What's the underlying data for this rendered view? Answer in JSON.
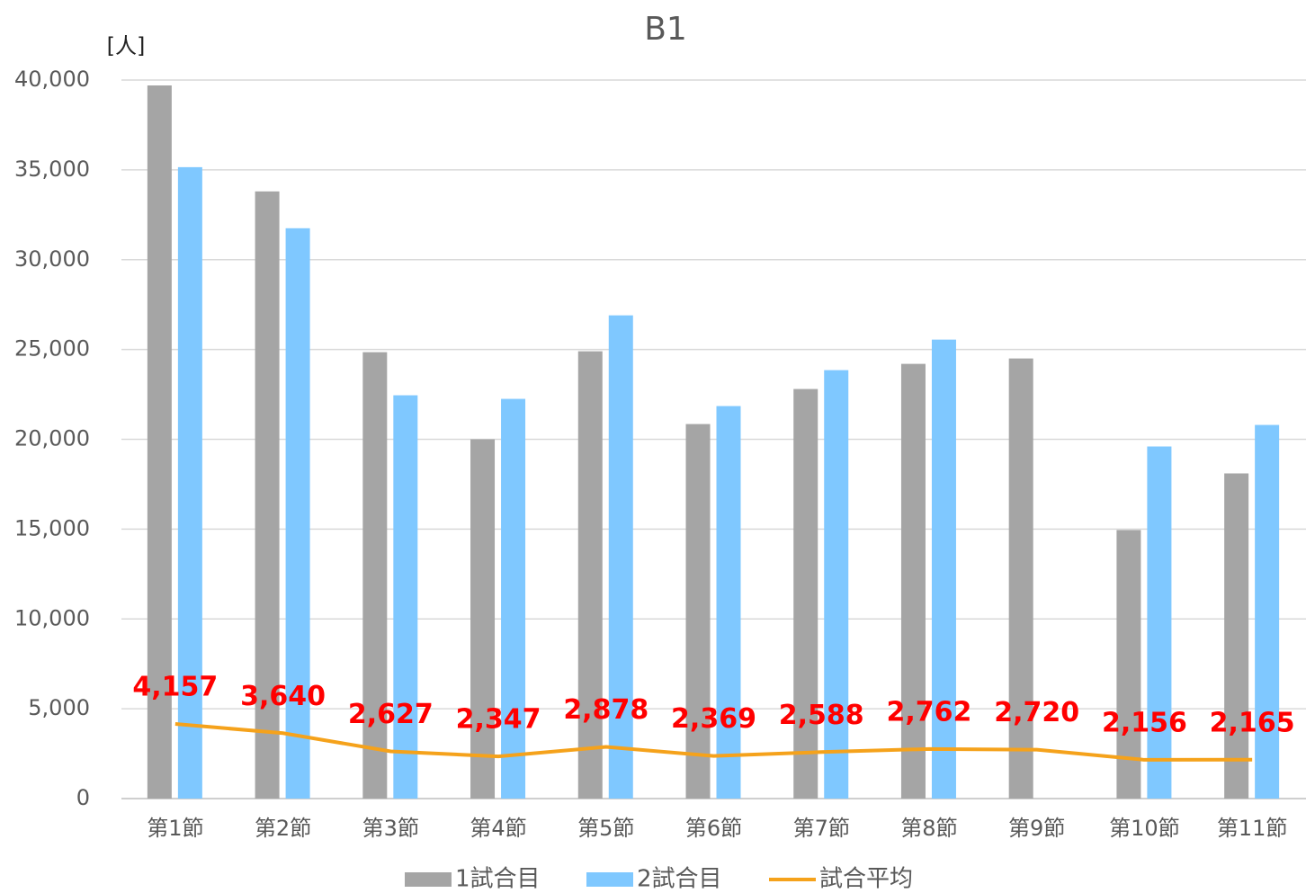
{
  "chart_data": {
    "type": "bar",
    "title": "B1",
    "y_unit_label": "[人]",
    "categories": [
      "第1節",
      "第2節",
      "第3節",
      "第4節",
      "第5節",
      "第6節",
      "第7節",
      "第8節",
      "第9節",
      "第10節",
      "第11節"
    ],
    "series": [
      {
        "name": "1試合目",
        "color": "#a5a5a5",
        "values": [
          39700,
          33800,
          24850,
          20000,
          24900,
          20850,
          22800,
          24200,
          24500,
          14950,
          18100
        ]
      },
      {
        "name": "2試合目",
        "color": "#7fc8ff",
        "values": [
          35150,
          31750,
          22450,
          22250,
          26900,
          21850,
          23850,
          25550,
          null,
          19600,
          20800
        ]
      },
      {
        "name": "試合平均",
        "type": "line",
        "color": "#f5a21b",
        "label_color": "#ff0000",
        "values": [
          4157,
          3640,
          2627,
          2347,
          2878,
          2369,
          2588,
          2762,
          2720,
          2156,
          2165
        ],
        "value_labels": [
          "4,157",
          "3,640",
          "2,627",
          "2,347",
          "2,878",
          "2,369",
          "2,588",
          "2,762",
          "2,720",
          "2,156",
          "2,165"
        ]
      }
    ],
    "ylim": [
      0,
      40000
    ],
    "yticks": [
      0,
      {
        "value": 5000,
        "label": "5,000"
      },
      {
        "value": 10000,
        "label": "10,000"
      },
      {
        "value": 15000,
        "label": "15,000"
      },
      {
        "value": 20000,
        "label": "20,000"
      },
      {
        "value": 25000,
        "label": "25,000"
      },
      {
        "value": 30000,
        "label": "30,000"
      },
      {
        "value": 35000,
        "label": "35,000"
      },
      {
        "value": 40000,
        "label": "40,000"
      }
    ],
    "grid": true,
    "legend": "bottom"
  }
}
